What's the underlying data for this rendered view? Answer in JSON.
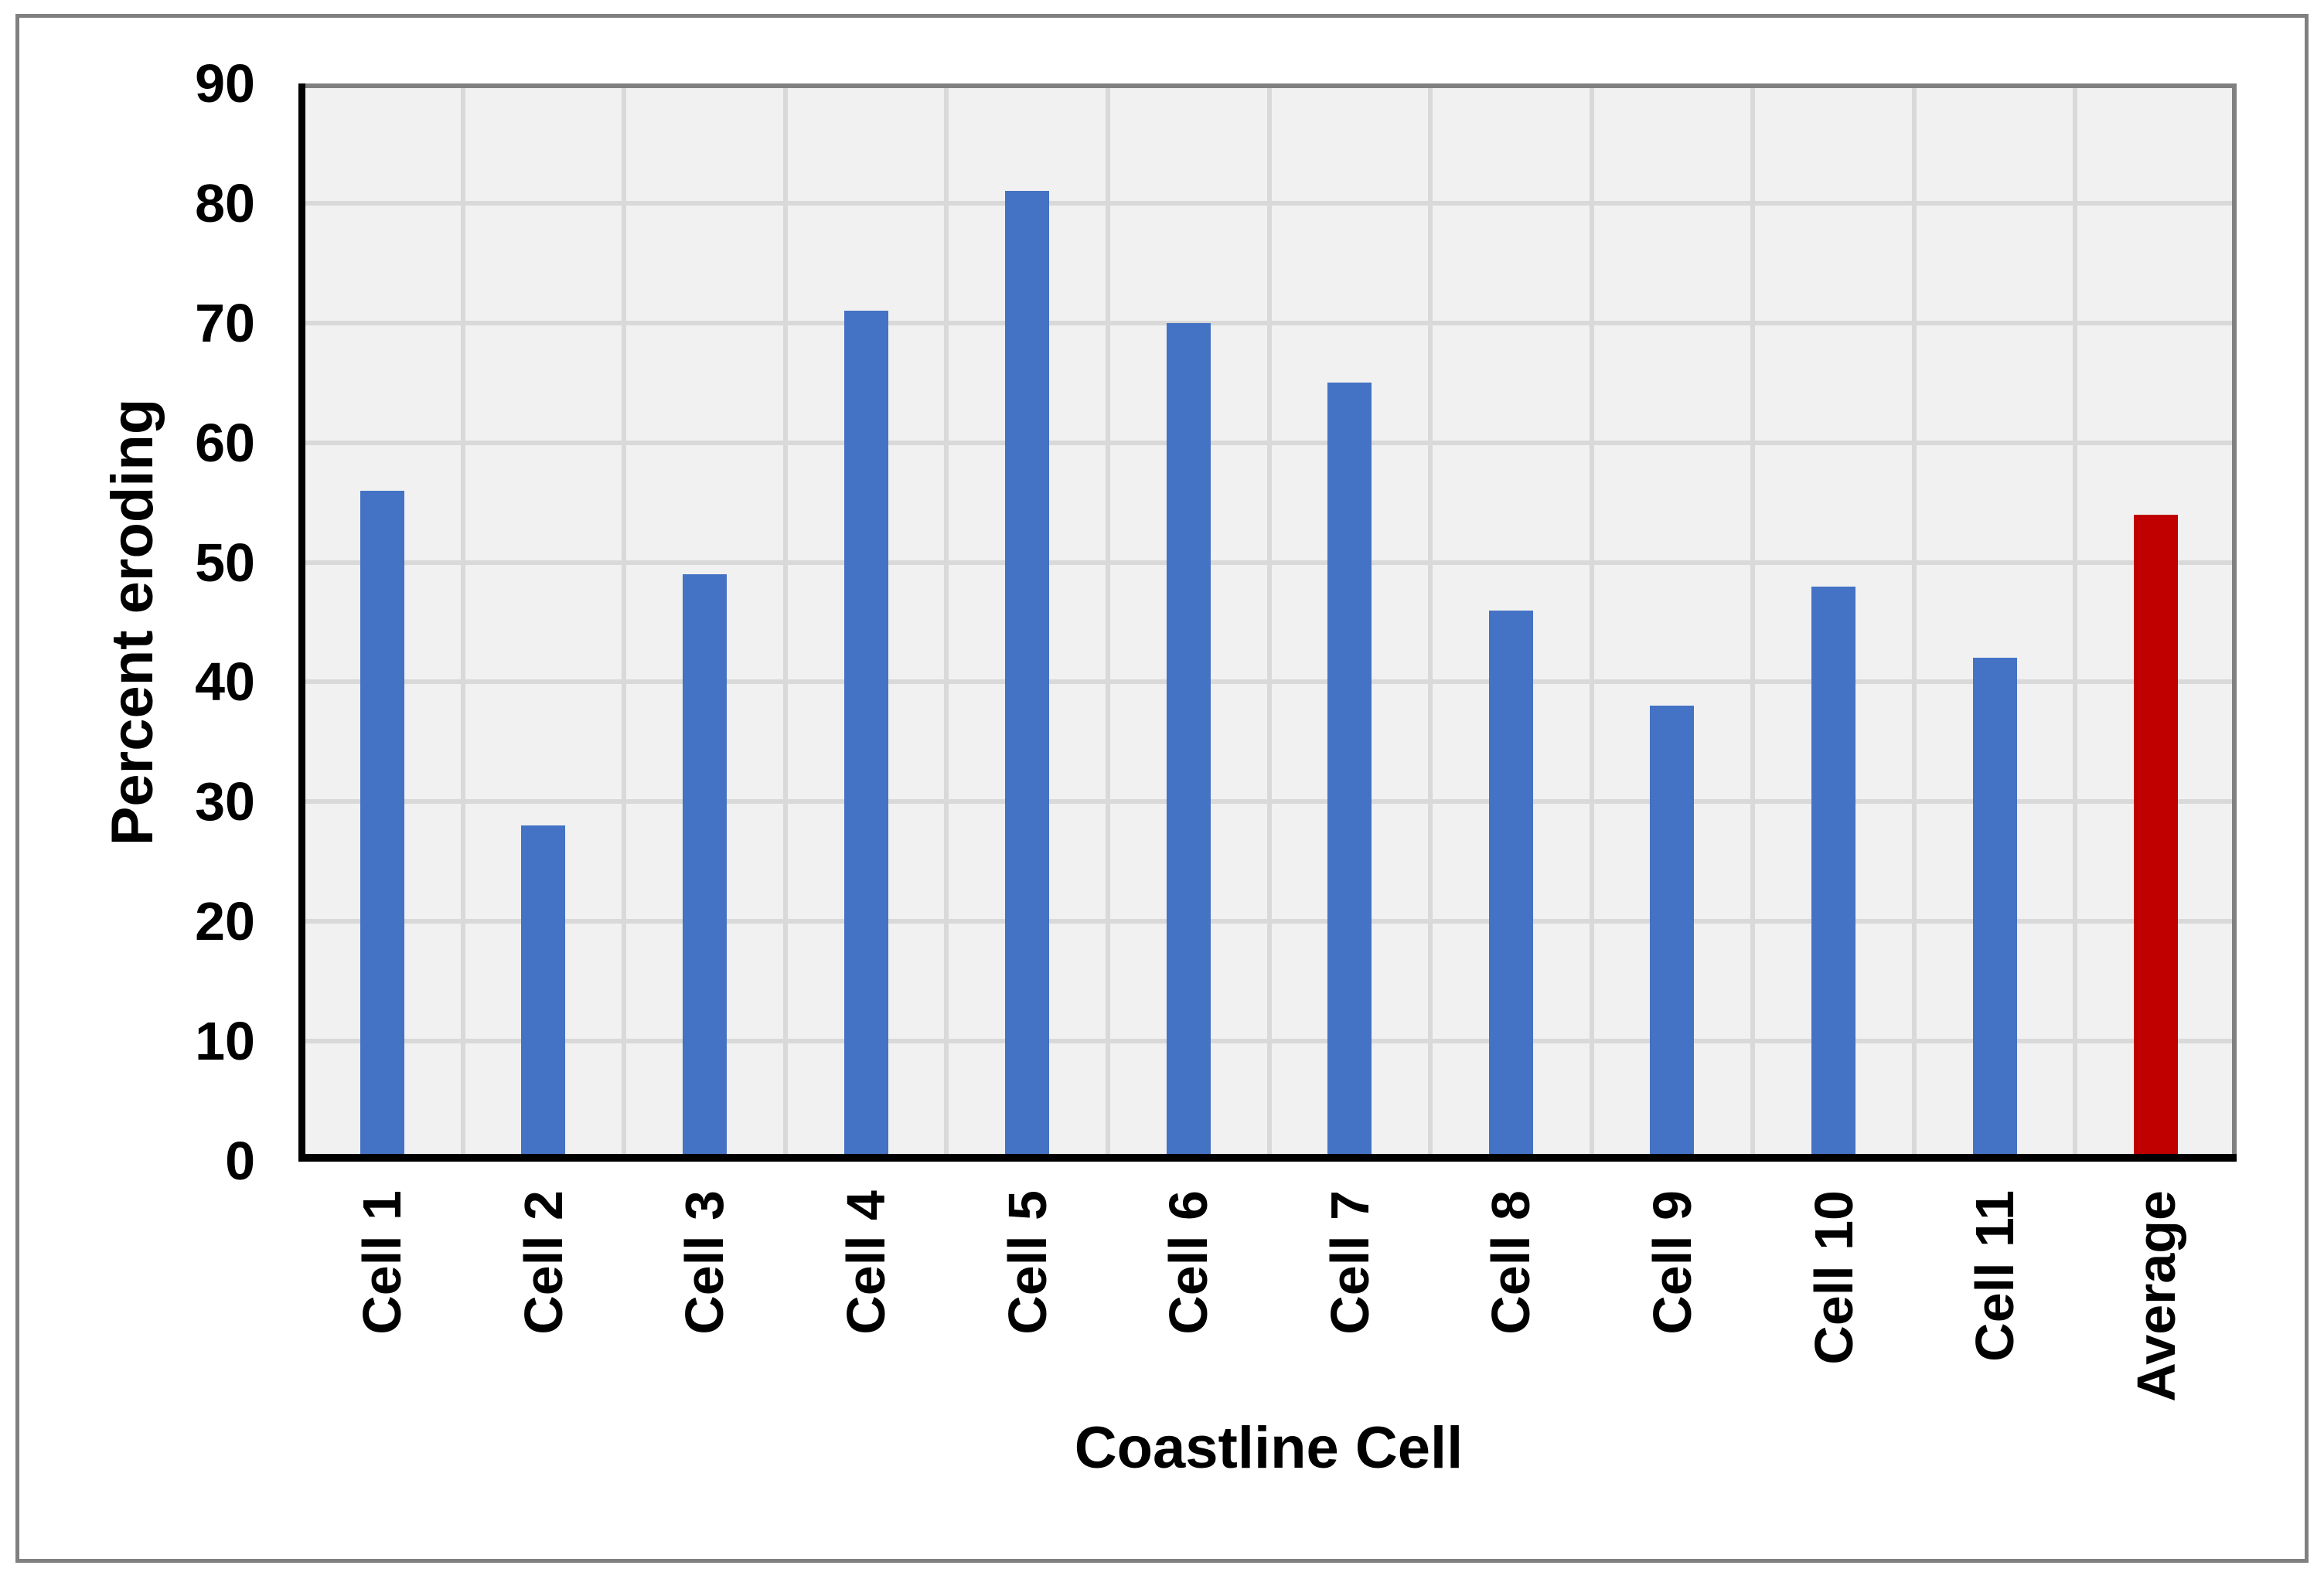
{
  "chart_data": {
    "type": "bar",
    "title": "",
    "xlabel": "Coastline Cell",
    "ylabel": "Percent eroding",
    "categories": [
      "Cell 1",
      "Cell 2",
      "Cell 3",
      "Cell 4",
      "Cell 5",
      "Cell 6",
      "Cell 7",
      "Cell 8",
      "Cell 9",
      "Cell 10",
      "Cell 11",
      "Average"
    ],
    "values": [
      56,
      28,
      49,
      71,
      81,
      70,
      65,
      46,
      38,
      48,
      42,
      54
    ],
    "highlight_category": "Average",
    "y_ticks": [
      0,
      10,
      20,
      30,
      40,
      50,
      60,
      70,
      80,
      90
    ],
    "ylim": [
      0,
      90
    ],
    "grid": true,
    "legend": "none",
    "colors": {
      "bar": "#4472C4",
      "highlight_bar": "#C00000",
      "plot_background": "#F1F1F1",
      "gridline": "#D9D9D9",
      "plot_border": "#808080",
      "outer_border": "#808080",
      "axis_line": "#000000",
      "text": "#000000"
    }
  }
}
